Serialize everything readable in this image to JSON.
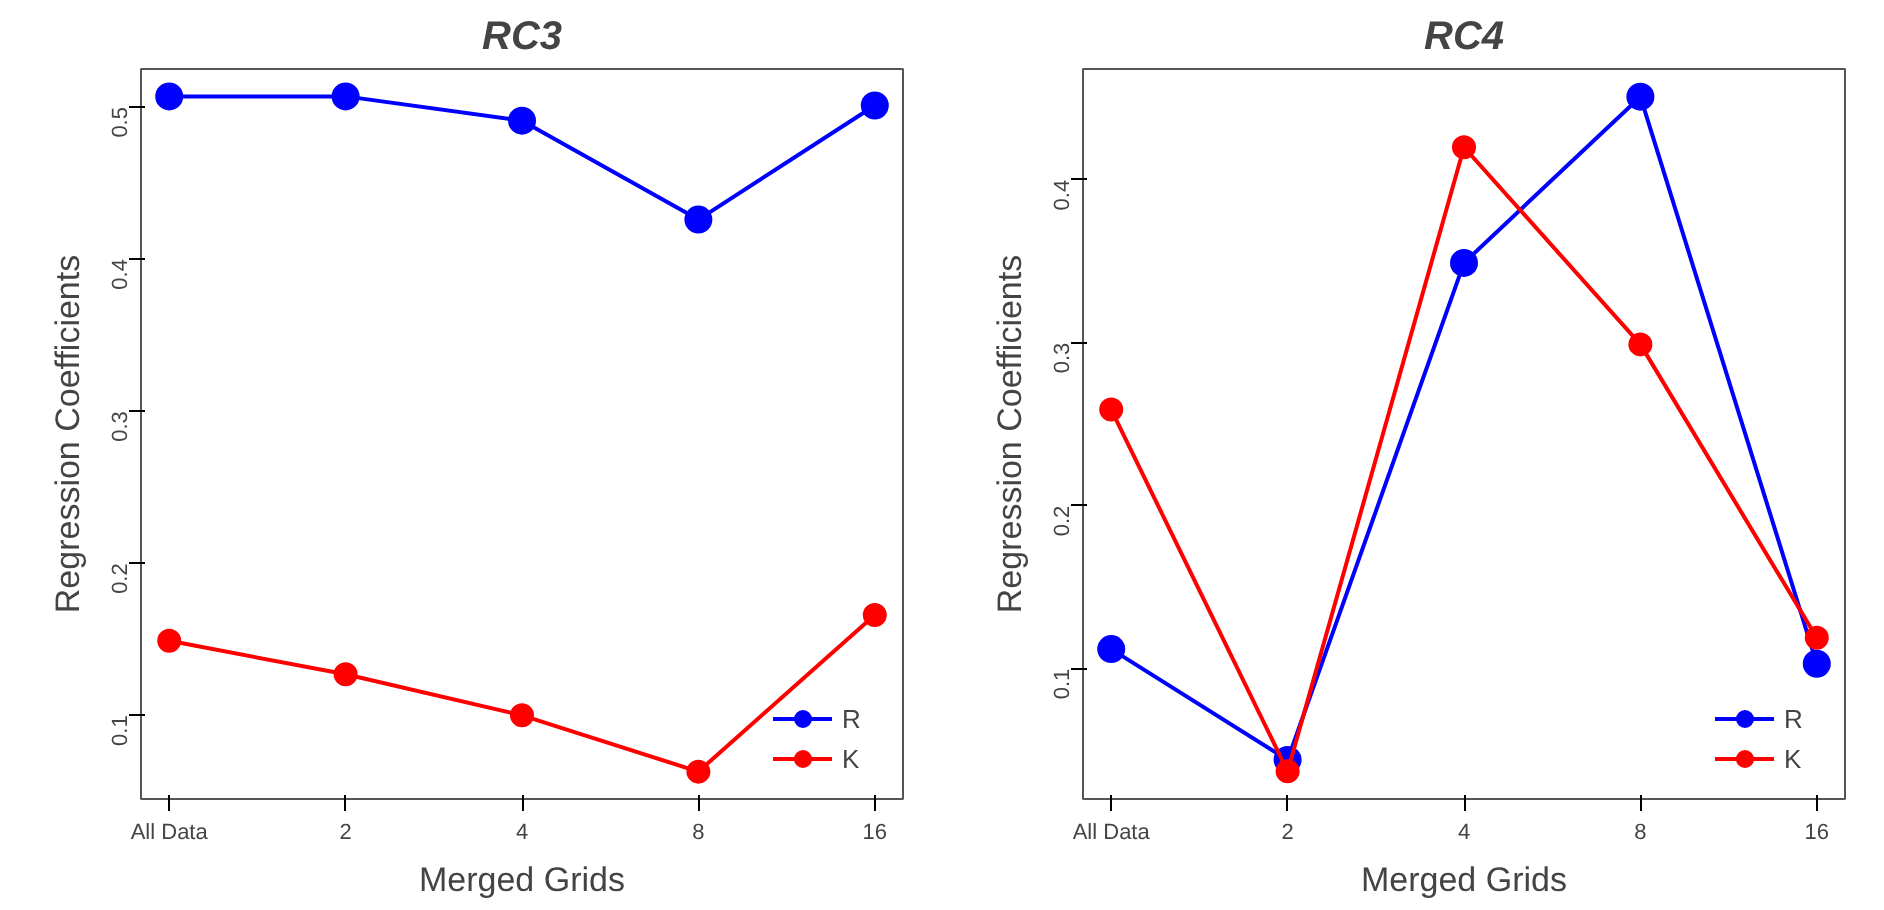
{
  "chart_data": [
    {
      "type": "line",
      "title": "RC3",
      "xlabel": "Merged Grids",
      "ylabel": "Regression Coefficients",
      "categories": [
        "All Data",
        "2",
        "4",
        "8",
        "16"
      ],
      "ylim": [
        0.045,
        0.525
      ],
      "yticks": [
        0.1,
        0.2,
        0.3,
        0.4,
        0.5
      ],
      "marker": "circle",
      "legend": "bottom right",
      "grid": false,
      "series": [
        {
          "name": "R",
          "color": "#0000ff",
          "values": [
            0.507,
            0.507,
            0.491,
            0.426,
            0.501
          ]
        },
        {
          "name": "K",
          "color": "#ff0000",
          "values": [
            0.149,
            0.127,
            0.1,
            0.063,
            0.166
          ]
        }
      ]
    },
    {
      "type": "line",
      "title": "RC4",
      "xlabel": "Merged Grids",
      "ylabel": "Regression Coefficients",
      "categories": [
        "All Data",
        "2",
        "4",
        "8",
        "16"
      ],
      "ylim": [
        0.02,
        0.468
      ],
      "yticks": [
        0.1,
        0.2,
        0.3,
        0.4
      ],
      "marker": "circle",
      "legend": "bottom right",
      "grid": false,
      "series": [
        {
          "name": "R",
          "color": "#0000ff",
          "values": [
            0.112,
            0.044,
            0.349,
            0.451,
            0.103
          ]
        },
        {
          "name": "K",
          "color": "#ff0000",
          "values": [
            0.259,
            0.037,
            0.42,
            0.299,
            0.119
          ]
        }
      ]
    }
  ]
}
